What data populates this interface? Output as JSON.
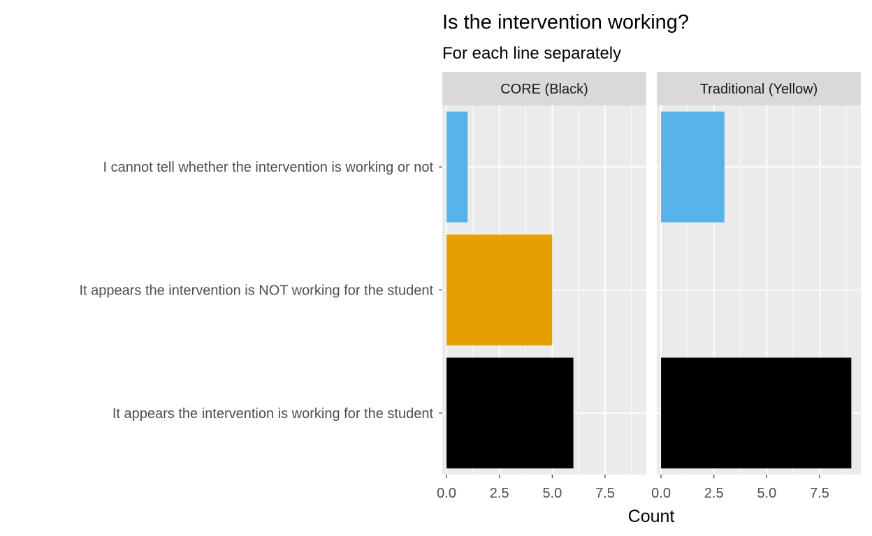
{
  "chart_data": {
    "type": "bar",
    "orientation": "horizontal",
    "title": "Is the intervention working?",
    "subtitle": "For each line separately",
    "xlabel": "Count",
    "ylabel": "",
    "xlim": [
      -0.2,
      9.45
    ],
    "x_ticks": [
      {
        "value": 0,
        "label": "0.0"
      },
      {
        "value": 2.5,
        "label": "2.5"
      },
      {
        "value": 5,
        "label": "5.0"
      },
      {
        "value": 7.5,
        "label": "7.5"
      }
    ],
    "categories": [
      "I cannot tell whether the intervention is working or not",
      "It appears the intervention is NOT working for the student",
      "It appears the intervention is working for the student"
    ],
    "category_colors": [
      "#56B4E9",
      "#E69F00",
      "#000000"
    ],
    "facets": [
      {
        "label": "CORE (Black)",
        "values": [
          1,
          5,
          6
        ]
      },
      {
        "label": "Traditional (Yellow)",
        "values": [
          3,
          0,
          9
        ]
      }
    ],
    "legend": "none",
    "grid": true,
    "panel_background": "#EBEBEB",
    "strip_background": "#D9D9D9"
  }
}
